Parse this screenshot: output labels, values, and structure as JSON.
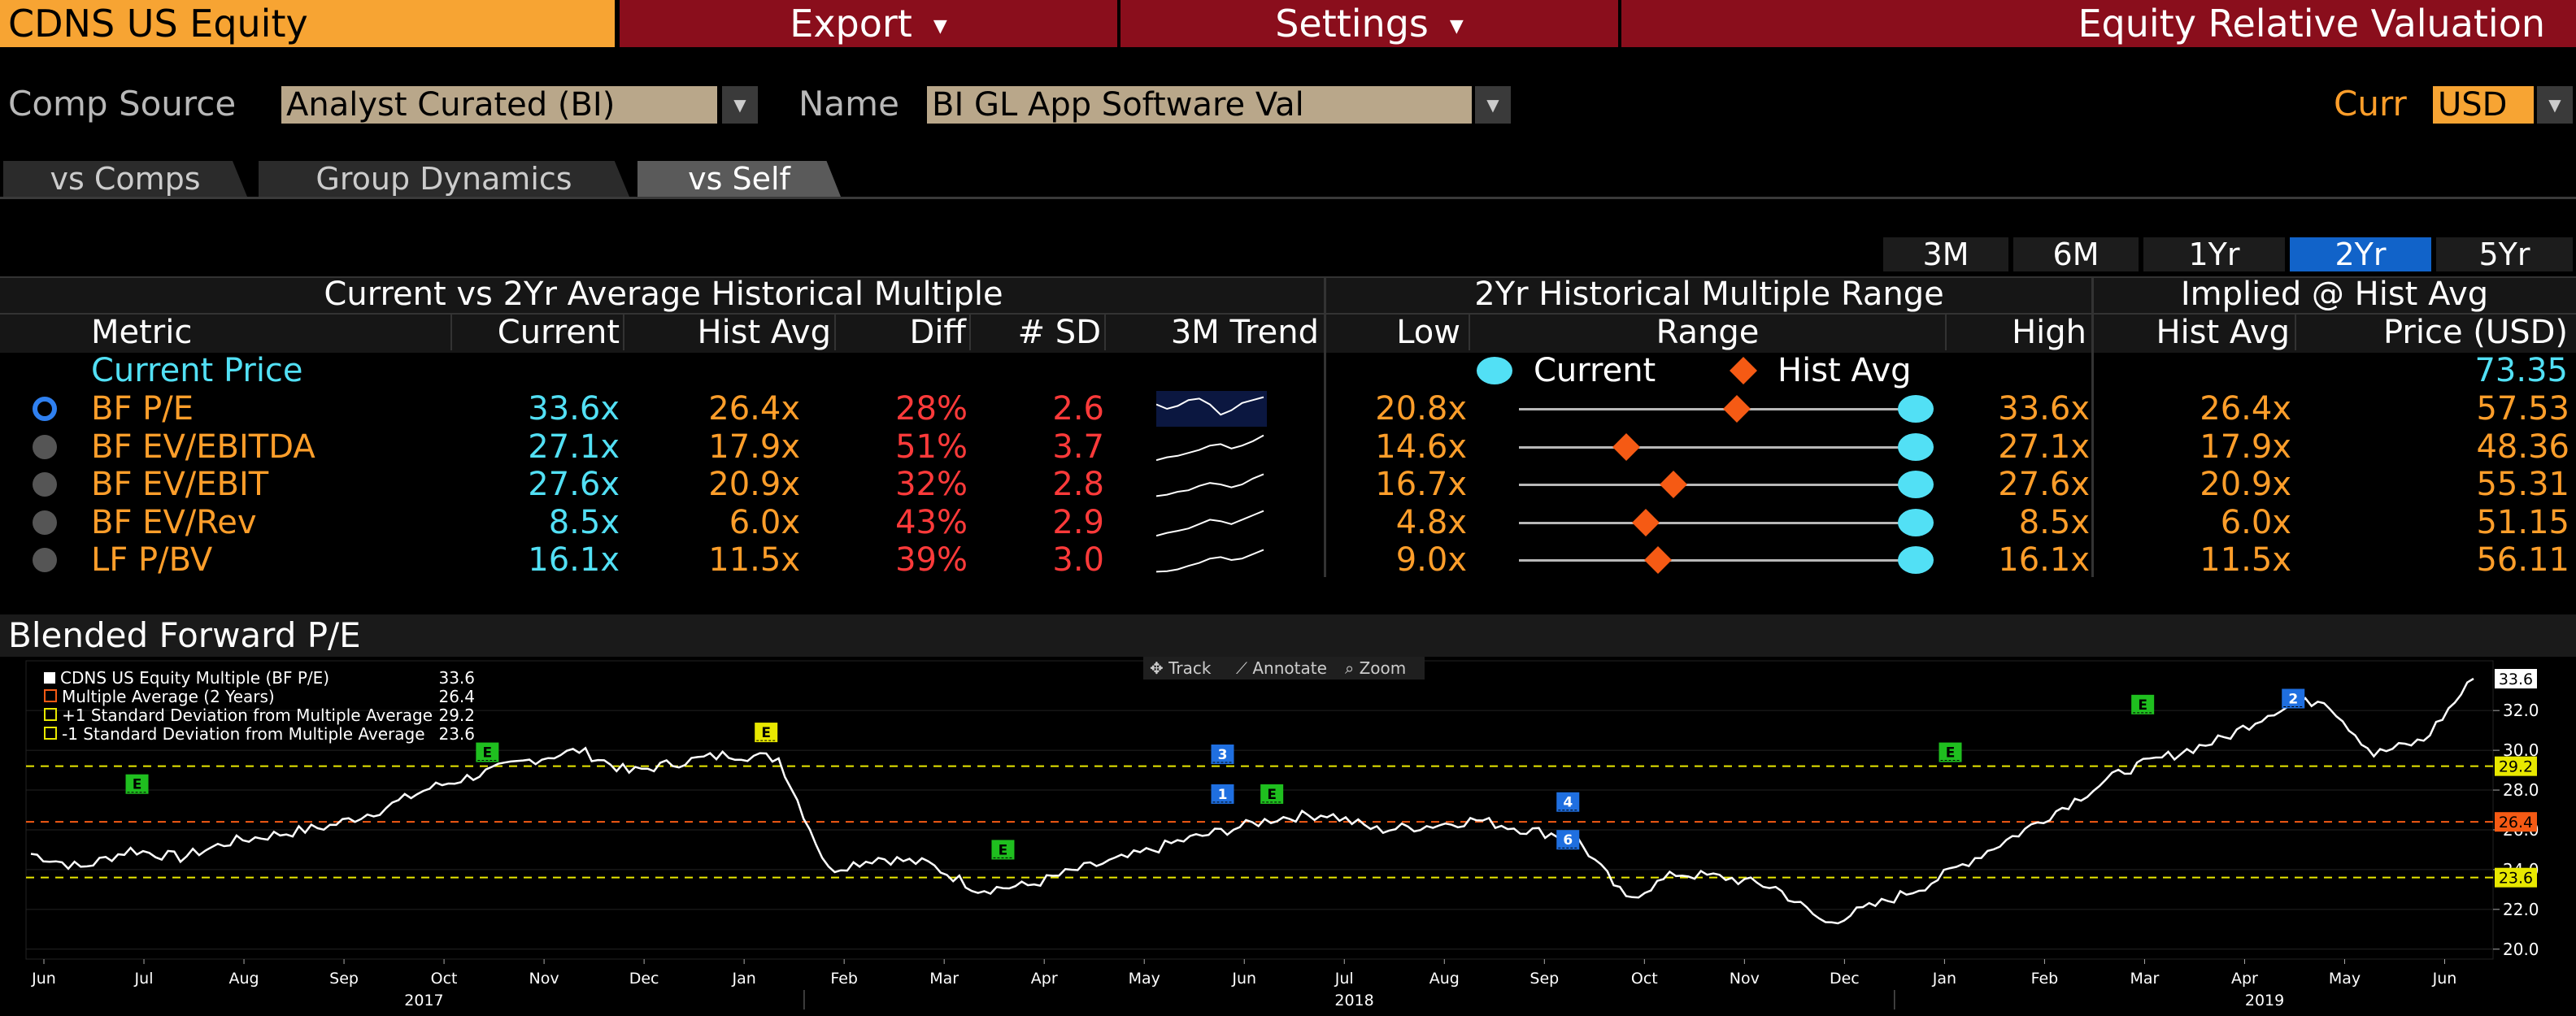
{
  "topbar": {
    "ticker": "CDNS US Equity",
    "export_label": "Export",
    "settings_label": "Settings",
    "title": "Equity Relative Valuation"
  },
  "comp": {
    "source_label": "Comp Source",
    "source_value": "Analyst Curated (BI)",
    "name_label": "Name",
    "name_value": "BI GL App Software Val",
    "curr_label": "Curr",
    "curr_value": "USD"
  },
  "tabs": [
    "vs Comps",
    "Group Dynamics",
    "vs Self"
  ],
  "active_tab": "vs Self",
  "ranges": [
    "3M",
    "6M",
    "1Yr",
    "2Yr",
    "5Yr"
  ],
  "active_range": "2Yr",
  "table": {
    "group_headers": {
      "current_vs_avg": "Current vs 2Yr Average Historical Multiple",
      "range": "2Yr Historical Multiple Range",
      "implied": "Implied @ Hist Avg"
    },
    "columns": {
      "metric": "Metric",
      "current": "Current",
      "hist_avg": "Hist Avg",
      "diff": "Diff",
      "sd": "# SD",
      "trend": "3M Trend",
      "low": "Low",
      "range": "Range",
      "high": "High",
      "implied_hist_avg": "Hist Avg",
      "price": "Price (USD)"
    },
    "range_legend": {
      "current": "Current",
      "hist_avg": "Hist Avg"
    },
    "current_price_label": "Current Price",
    "current_price": "73.35",
    "rows": [
      {
        "metric": "BF P/E",
        "current": "33.6x",
        "hist_avg": "26.4x",
        "diff": "28%",
        "sd": "2.6",
        "low": "20.8x",
        "high": "33.6x",
        "implied_hist_avg": "26.4x",
        "price": "57.53",
        "avg_pos": 0.55,
        "cur_pos": 1.0,
        "selected": true
      },
      {
        "metric": "BF EV/EBITDA",
        "current": "27.1x",
        "hist_avg": "17.9x",
        "diff": "51%",
        "sd": "3.7",
        "low": "14.6x",
        "high": "27.1x",
        "implied_hist_avg": "17.9x",
        "price": "48.36",
        "avg_pos": 0.27,
        "cur_pos": 1.0,
        "selected": false
      },
      {
        "metric": "BF EV/EBIT",
        "current": "27.6x",
        "hist_avg": "20.9x",
        "diff": "32%",
        "sd": "2.8",
        "low": "16.7x",
        "high": "27.6x",
        "implied_hist_avg": "20.9x",
        "price": "55.31",
        "avg_pos": 0.39,
        "cur_pos": 1.0,
        "selected": false
      },
      {
        "metric": "BF EV/Rev",
        "current": "8.5x",
        "hist_avg": "6.0x",
        "diff": "43%",
        "sd": "2.9",
        "low": "4.8x",
        "high": "8.5x",
        "implied_hist_avg": "6.0x",
        "price": "51.15",
        "avg_pos": 0.32,
        "cur_pos": 1.0,
        "selected": false
      },
      {
        "metric": "LF P/BV",
        "current": "16.1x",
        "hist_avg": "11.5x",
        "diff": "39%",
        "sd": "3.0",
        "low": "9.0x",
        "high": "16.1x",
        "implied_hist_avg": "11.5x",
        "price": "56.11",
        "avg_pos": 0.35,
        "cur_pos": 1.0,
        "selected": false
      }
    ]
  },
  "chart_section_title": "Blended Forward P/E",
  "chart_tools": {
    "track": "Track",
    "annotate": "Annotate",
    "zoom": "Zoom"
  },
  "colors": {
    "accent_orange": "#f7a433",
    "menu_red": "#8a0e1c",
    "cyan": "#52e0f5",
    "value_orange": "#ff9e2a",
    "diff_red": "#ff3a3a",
    "active_blue": "#1163c9"
  },
  "chart_data": {
    "type": "line",
    "title": "Blended Forward P/E",
    "ylim": [
      19.5,
      34.5
    ],
    "y_ticks": [
      "20.0",
      "22.0",
      "24.0",
      "26.0",
      "28.0",
      "30.0",
      "32.0"
    ],
    "x_months": [
      "Jun",
      "Jul",
      "Aug",
      "Sep",
      "Oct",
      "Nov",
      "Dec",
      "Jan",
      "Feb",
      "Mar",
      "Apr",
      "May",
      "Jun",
      "Jul",
      "Aug",
      "Sep",
      "Oct",
      "Nov",
      "Dec",
      "Jan",
      "Feb",
      "Mar",
      "Apr",
      "May",
      "Jun"
    ],
    "x_years": [
      "2017",
      "2018",
      "2019"
    ],
    "legend": [
      {
        "name": "CDNS US Equity Multiple (BF P/E)",
        "value": "33.6",
        "color": "#ffffff"
      },
      {
        "name": "Multiple Average (2 Years)",
        "value": "26.4",
        "color": "#f55a14"
      },
      {
        "name": "+1 Standard Deviation from Multiple Average",
        "value": "29.2",
        "color": "#e8e800"
      },
      {
        "name": "-1 Standard Deviation from Multiple Average",
        "value": "23.6",
        "color": "#e8e800"
      }
    ],
    "reference_lines": [
      29.2,
      26.4,
      23.6
    ],
    "last_value": "33.6",
    "series": [
      {
        "name": "CDNS US Equity Multiple (BF P/E)",
        "x": [
          "2017-06",
          "2017-06",
          "2017-07",
          "2017-07",
          "2017-08",
          "2017-08",
          "2017-09",
          "2017-09",
          "2017-10",
          "2017-10",
          "2017-11",
          "2017-11",
          "2017-12",
          "2017-12",
          "2018-01",
          "2018-01",
          "2018-02",
          "2018-02",
          "2018-03",
          "2018-03",
          "2018-04",
          "2018-04",
          "2018-05",
          "2018-05",
          "2018-06",
          "2018-06",
          "2018-07",
          "2018-07",
          "2018-08",
          "2018-08",
          "2018-09",
          "2018-09",
          "2018-10",
          "2018-10",
          "2018-11",
          "2018-11",
          "2018-12",
          "2018-12",
          "2019-01",
          "2019-01",
          "2019-02",
          "2019-02",
          "2019-03",
          "2019-03",
          "2019-04",
          "2019-04",
          "2019-05",
          "2019-05",
          "2019-06",
          "2019-06"
        ],
        "values": [
          24.8,
          24.1,
          25.0,
          24.6,
          25.4,
          25.8,
          26.2,
          27.0,
          28.1,
          28.8,
          29.5,
          30.0,
          28.9,
          29.4,
          29.8,
          29.6,
          24.0,
          24.6,
          24.3,
          23.0,
          23.2,
          24.0,
          24.6,
          25.4,
          26.0,
          26.6,
          26.8,
          26.0,
          26.2,
          26.5,
          26.0,
          25.6,
          22.5,
          23.8,
          23.6,
          23.1,
          21.3,
          22.2,
          23.2,
          24.6,
          26.0,
          27.5,
          29.0,
          29.8,
          30.6,
          32.0,
          32.6,
          29.8,
          30.5,
          33.6
        ]
      }
    ],
    "event_tags": [
      {
        "label": "E",
        "color": "#1fbf1f"
      },
      {
        "label": "E",
        "color": "#1fbf1f"
      },
      {
        "label": "E",
        "color": "#e8e800"
      },
      {
        "label": "E",
        "color": "#1fbf1f"
      },
      {
        "label": "3",
        "color": "#1f6fe0"
      },
      {
        "label": "1",
        "color": "#1f6fe0"
      },
      {
        "label": "E",
        "color": "#1fbf1f"
      },
      {
        "label": "4",
        "color": "#1f6fe0"
      },
      {
        "label": "6",
        "color": "#1f6fe0"
      },
      {
        "label": "E",
        "color": "#1fbf1f"
      },
      {
        "label": "E",
        "color": "#1fbf1f"
      },
      {
        "label": "2",
        "color": "#1f6fe0"
      }
    ]
  }
}
